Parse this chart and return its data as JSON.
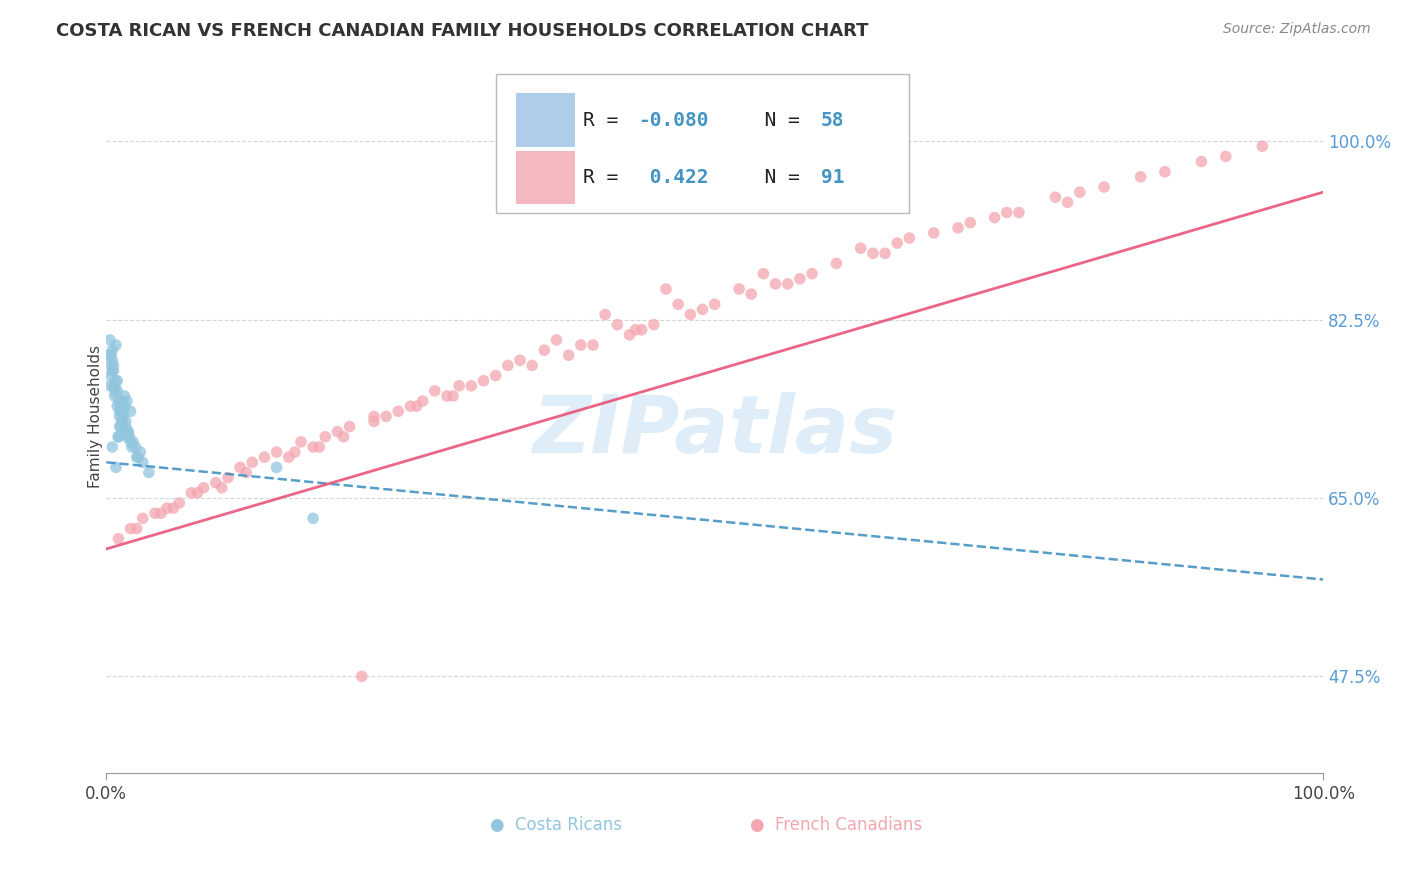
{
  "title": "COSTA RICAN VS FRENCH CANADIAN FAMILY HOUSEHOLDS CORRELATION CHART",
  "source_text": "Source: ZipAtlas.com",
  "ylabel": "Family Households",
  "xlim": [
    0.0,
    100.0
  ],
  "ylim": [
    38.0,
    108.0
  ],
  "ytick_labels": [
    "47.5%",
    "65.0%",
    "82.5%",
    "100.0%"
  ],
  "ytick_values": [
    47.5,
    65.0,
    82.5,
    100.0
  ],
  "xtick_labels": [
    "0.0%",
    "100.0%"
  ],
  "xtick_values": [
    0.0,
    100.0
  ],
  "blue_color": "#92c5de",
  "pink_color": "#f4a6b0",
  "trend_blue_color": "#4393c3",
  "trend_pink_color": "#e8547a",
  "watermark": "ZIPatlas",
  "background_color": "#ffffff",
  "grid_color": "#cccccc",
  "blue_scatter_x": [
    0.5,
    1.0,
    1.2,
    0.8,
    1.5,
    2.0,
    0.3,
    0.7,
    1.8,
    1.1,
    0.4,
    1.3,
    0.6,
    2.5,
    1.7,
    0.9,
    1.4,
    2.2,
    0.2,
    1.6,
    0.8,
    1.0,
    0.5,
    1.9,
    1.2,
    0.6,
    2.8,
    1.5,
    0.4,
    0.9,
    1.1,
    2.1,
    0.7,
    1.3,
    0.5,
    1.8,
    2.4,
    0.3,
    1.0,
    1.6,
    3.0,
    0.8,
    1.4,
    0.6,
    2.0,
    1.2,
    0.9,
    1.7,
    2.6,
    0.5,
    3.5,
    1.1,
    0.4,
    1.5,
    14.0,
    17.0,
    0.7,
    1.3
  ],
  "blue_scatter_y": [
    70.0,
    71.0,
    72.0,
    68.0,
    74.0,
    73.5,
    76.0,
    75.0,
    71.5,
    73.0,
    77.0,
    72.5,
    78.0,
    69.0,
    74.5,
    76.5,
    73.0,
    70.5,
    79.0,
    72.0,
    80.0,
    71.0,
    77.5,
    71.0,
    73.5,
    76.0,
    69.5,
    75.0,
    78.0,
    74.0,
    72.0,
    70.0,
    75.5,
    73.0,
    79.5,
    71.5,
    70.0,
    80.5,
    74.5,
    72.5,
    68.5,
    76.5,
    73.5,
    77.5,
    70.5,
    74.0,
    75.5,
    71.0,
    69.0,
    78.5,
    67.5,
    73.5,
    79.0,
    74.0,
    68.0,
    63.0,
    76.0,
    74.5
  ],
  "pink_scatter_x": [
    1.0,
    3.0,
    8.0,
    12.0,
    5.0,
    15.0,
    20.0,
    7.0,
    25.0,
    10.0,
    18.0,
    4.0,
    30.0,
    2.0,
    35.0,
    22.0,
    9.0,
    40.0,
    14.0,
    28.0,
    6.0,
    45.0,
    17.0,
    32.0,
    50.0,
    11.0,
    38.0,
    55.0,
    24.0,
    43.0,
    16.0,
    60.0,
    48.0,
    27.0,
    65.0,
    19.0,
    53.0,
    33.0,
    70.0,
    42.0,
    13.0,
    75.0,
    58.0,
    22.0,
    80.0,
    36.0,
    47.0,
    85.0,
    26.0,
    63.0,
    90.0,
    31.0,
    68.0,
    46.0,
    95.0,
    41.0,
    73.0,
    54.0,
    79.0,
    37.0,
    2.5,
    7.5,
    23.0,
    15.5,
    44.0,
    29.0,
    56.0,
    87.0,
    19.5,
    62.0,
    5.5,
    34.0,
    49.0,
    11.5,
    66.0,
    78.0,
    28.5,
    9.5,
    52.0,
    71.0,
    4.5,
    39.0,
    64.0,
    17.5,
    82.0,
    25.5,
    57.0,
    92.0,
    43.5,
    74.0,
    21.0
  ],
  "pink_scatter_y": [
    61.0,
    63.0,
    66.0,
    68.5,
    64.0,
    69.0,
    72.0,
    65.5,
    74.0,
    67.0,
    71.0,
    63.5,
    76.0,
    62.0,
    78.0,
    73.0,
    66.5,
    80.0,
    69.5,
    75.0,
    64.5,
    82.0,
    70.0,
    77.0,
    84.0,
    68.0,
    79.0,
    86.0,
    73.5,
    81.0,
    70.5,
    88.0,
    83.0,
    75.5,
    90.0,
    71.5,
    85.0,
    78.0,
    91.5,
    82.0,
    69.0,
    93.0,
    87.0,
    72.5,
    95.0,
    79.5,
    84.0,
    96.5,
    74.5,
    89.0,
    98.0,
    76.5,
    91.0,
    85.5,
    99.5,
    83.0,
    92.5,
    87.0,
    94.0,
    80.5,
    62.0,
    65.5,
    73.0,
    69.5,
    81.5,
    76.0,
    86.0,
    97.0,
    71.0,
    89.5,
    64.0,
    78.5,
    83.5,
    67.5,
    90.5,
    94.5,
    75.0,
    66.0,
    85.5,
    92.0,
    63.5,
    80.0,
    89.0,
    70.0,
    95.5,
    74.0,
    86.5,
    98.5,
    81.5,
    93.0,
    47.5
  ],
  "blue_trend_x": [
    0,
    100
  ],
  "blue_trend_y": [
    68.5,
    57.0
  ],
  "pink_trend_x": [
    0,
    100
  ],
  "pink_trend_y": [
    60.0,
    95.0
  ]
}
